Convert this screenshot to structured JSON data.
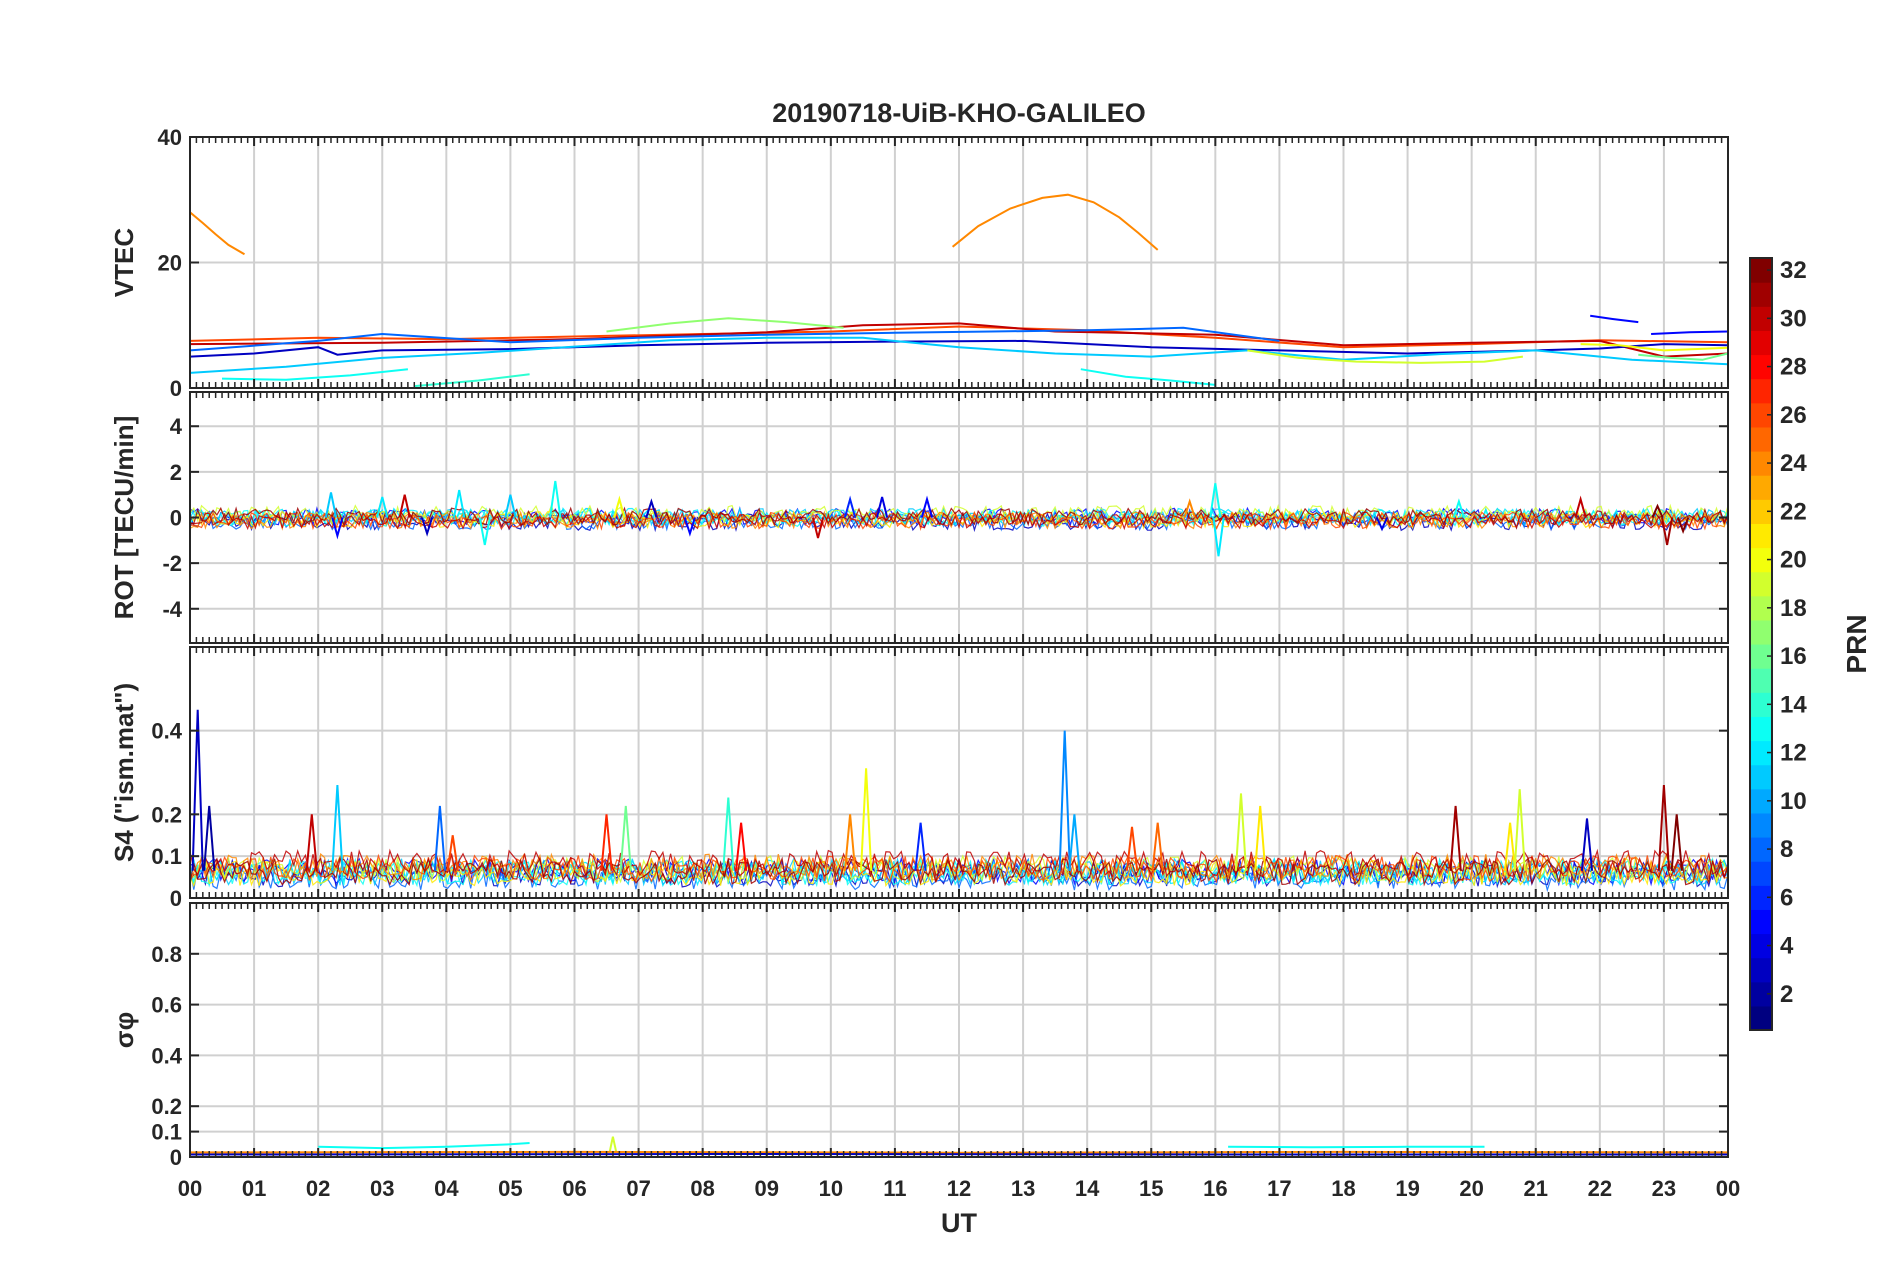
{
  "chart_data": {
    "type": "line",
    "title": "20190718-UiB-KHO-GALILEO",
    "xlabel": "UT",
    "x_ticks": [
      "00",
      "01",
      "02",
      "03",
      "04",
      "05",
      "06",
      "07",
      "08",
      "09",
      "10",
      "11",
      "12",
      "13",
      "14",
      "15",
      "16",
      "17",
      "18",
      "19",
      "20",
      "21",
      "22",
      "23",
      "00"
    ],
    "xlim_hours": [
      0,
      24
    ],
    "grid": true,
    "colorbar": {
      "label": "PRN",
      "range": [
        1,
        32
      ],
      "ticks": [
        "2",
        "4",
        "6",
        "8",
        "10",
        "12",
        "14",
        "16",
        "18",
        "20",
        "22",
        "24",
        "26",
        "28",
        "30",
        "32"
      ],
      "placement": "right",
      "colormap": "jet"
    },
    "panels": [
      {
        "id": "vtec",
        "ylabel": "VTEC",
        "ylim": [
          0,
          40
        ],
        "y_ticks": [
          "0",
          "20",
          "40"
        ],
        "y_tick_values": [
          0,
          20,
          40
        ],
        "series": [
          {
            "prn": 24,
            "x": [
              0.0,
              0.2,
              0.4,
              0.6,
              0.85
            ],
            "y": [
              28,
              26.3,
              24.5,
              22.8,
              21.3
            ]
          },
          {
            "prn": 24,
            "x": [
              11.9,
              12.3,
              12.8,
              13.3,
              13.7,
              14.1,
              14.5,
              14.8,
              15.1
            ],
            "y": [
              22.5,
              25.8,
              28.6,
              30.3,
              30.8,
              29.6,
              27.2,
              24.7,
              22.0
            ]
          },
          {
            "prn": 26,
            "x": [
              0,
              2,
              4,
              6,
              8,
              10,
              12,
              14,
              16,
              18,
              20,
              22,
              24
            ],
            "y": [
              7.5,
              8.0,
              7.8,
              8.2,
              8.6,
              9.0,
              9.8,
              9.2,
              8.0,
              6.5,
              7.0,
              7.6,
              7.3
            ]
          },
          {
            "prn": 30,
            "x": [
              0,
              3,
              6,
              9,
              10.5,
              12,
              13.5,
              16,
              18,
              20,
              22,
              23,
              24
            ],
            "y": [
              7.0,
              7.2,
              7.8,
              8.9,
              10.0,
              10.3,
              9.0,
              8.5,
              6.8,
              7.2,
              7.5,
              5.0,
              5.5
            ]
          },
          {
            "prn": 17,
            "x": [
              6.5,
              7.5,
              8.4,
              9.3,
              10.2
            ],
            "y": [
              9.0,
              10.3,
              11.1,
              10.5,
              9.6
            ]
          },
          {
            "prn": 8,
            "x": [
              0,
              2,
              3,
              5,
              7,
              9,
              11,
              12.5,
              14,
              15.5,
              17
            ],
            "y": [
              6.0,
              7.5,
              8.6,
              7.3,
              8.0,
              8.5,
              8.8,
              9.0,
              9.2,
              9.6,
              7.5
            ]
          },
          {
            "prn": 3,
            "x": [
              0,
              1,
              2,
              2.3,
              3,
              5,
              7,
              9,
              11,
              13,
              15,
              17,
              19,
              21,
              22,
              23,
              24
            ],
            "y": [
              5.0,
              5.5,
              6.5,
              5.3,
              6.0,
              6.2,
              6.8,
              7.2,
              7.4,
              7.5,
              6.5,
              6.0,
              5.5,
              6.0,
              6.3,
              7.0,
              6.8
            ]
          },
          {
            "prn": 5,
            "x": [
              21.85,
              22.2,
              22.6
            ],
            "y": [
              11.5,
              11.0,
              10.5
            ]
          },
          {
            "prn": 5,
            "x": [
              22.8,
              23.4,
              24
            ],
            "y": [
              8.6,
              8.9,
              9.0
            ]
          },
          {
            "prn": 11,
            "x": [
              0,
              1.5,
              3,
              4.5,
              6,
              7.5,
              9,
              10.5,
              12,
              13.5,
              15,
              16.5,
              18,
              19.5,
              21,
              22.5,
              24
            ],
            "y": [
              2.4,
              3.4,
              4.8,
              5.6,
              6.6,
              7.6,
              8.0,
              8.0,
              6.5,
              5.5,
              5.0,
              6.0,
              4.5,
              5.4,
              6.0,
              4.5,
              3.8
            ]
          },
          {
            "prn": 13,
            "x": [
              0.5,
              1.5,
              2.5,
              3.4
            ],
            "y": [
              1.5,
              1.3,
              2.0,
              3.0
            ]
          },
          {
            "prn": 13,
            "x": [
              13.9,
              14.6,
              15.3,
              16.0
            ],
            "y": [
              3.0,
              1.8,
              1.2,
              0.5
            ]
          },
          {
            "prn": 14,
            "x": [
              3.5,
              4.5,
              5.3
            ],
            "y": [
              0.3,
              1.2,
              2.2
            ]
          },
          {
            "prn": 19,
            "x": [
              16.5,
              17.3,
              18.2,
              19.2,
              20.2,
              20.8
            ],
            "y": [
              6.0,
              4.8,
              4.2,
              4.0,
              4.2,
              5.0
            ]
          },
          {
            "prn": 16,
            "x": [
              22.6,
              23.1,
              23.6,
              24
            ],
            "y": [
              5.3,
              4.8,
              4.5,
              5.5
            ]
          },
          {
            "prn": 20,
            "x": [
              21.7,
              22.3,
              23.0,
              24
            ],
            "y": [
              7.0,
              6.8,
              6.0,
              6.4
            ]
          }
        ]
      },
      {
        "id": "rot",
        "ylabel": "ROT [TECU/min]",
        "ylim": [
          -5.5,
          5.5
        ],
        "y_ticks": [
          "-4",
          "-2",
          "0",
          "2",
          "4"
        ],
        "y_tick_values": [
          -4,
          -2,
          0,
          2,
          4
        ],
        "noise_band": [
          -0.4,
          0.4
        ],
        "spikes": [
          {
            "x": 2.2,
            "y": 1.1,
            "prn": 11
          },
          {
            "x": 2.3,
            "y": -0.8,
            "prn": 5
          },
          {
            "x": 3.0,
            "y": 0.9,
            "prn": 12
          },
          {
            "x": 3.35,
            "y": 1.0,
            "prn": 30
          },
          {
            "x": 3.7,
            "y": -0.7,
            "prn": 3
          },
          {
            "x": 4.2,
            "y": 1.2,
            "prn": 12
          },
          {
            "x": 4.6,
            "y": -1.2,
            "prn": 13
          },
          {
            "x": 5.0,
            "y": 1.0,
            "prn": 11
          },
          {
            "x": 5.7,
            "y": 1.6,
            "prn": 13
          },
          {
            "x": 6.7,
            "y": 0.8,
            "prn": 20
          },
          {
            "x": 7.2,
            "y": 0.7,
            "prn": 3
          },
          {
            "x": 7.8,
            "y": -0.7,
            "prn": 5
          },
          {
            "x": 9.8,
            "y": -0.9,
            "prn": 30
          },
          {
            "x": 10.3,
            "y": 0.8,
            "prn": 6
          },
          {
            "x": 10.8,
            "y": 0.9,
            "prn": 4
          },
          {
            "x": 11.5,
            "y": 0.8,
            "prn": 5
          },
          {
            "x": 15.6,
            "y": 0.7,
            "prn": 24
          },
          {
            "x": 16.0,
            "y": 1.5,
            "prn": 13
          },
          {
            "x": 16.05,
            "y": -1.7,
            "prn": 12
          },
          {
            "x": 18.6,
            "y": -0.5,
            "prn": 4
          },
          {
            "x": 19.8,
            "y": 0.7,
            "prn": 13
          },
          {
            "x": 21.7,
            "y": 0.8,
            "prn": 30
          },
          {
            "x": 22.9,
            "y": 0.5,
            "prn": 32
          },
          {
            "x": 23.05,
            "y": -1.2,
            "prn": 31
          },
          {
            "x": 23.3,
            "y": -0.6,
            "prn": 32
          }
        ]
      },
      {
        "id": "s4",
        "ylabel": "S4 (\"ism.mat\")",
        "ylim": [
          0,
          0.6
        ],
        "y_ticks": [
          "0",
          "0.1",
          "0.2",
          "0.4"
        ],
        "y_tick_values": [
          0,
          0.1,
          0.2,
          0.4
        ],
        "noise_band": [
          0.03,
          0.1
        ],
        "spikes": [
          {
            "x": 0.12,
            "y": 0.45,
            "prn": 3
          },
          {
            "x": 0.3,
            "y": 0.22,
            "prn": 2
          },
          {
            "x": 1.9,
            "y": 0.2,
            "prn": 30
          },
          {
            "x": 2.3,
            "y": 0.27,
            "prn": 11
          },
          {
            "x": 3.9,
            "y": 0.22,
            "prn": 8
          },
          {
            "x": 4.1,
            "y": 0.15,
            "prn": 26
          },
          {
            "x": 6.5,
            "y": 0.2,
            "prn": 27
          },
          {
            "x": 6.8,
            "y": 0.22,
            "prn": 16
          },
          {
            "x": 8.4,
            "y": 0.24,
            "prn": 14
          },
          {
            "x": 8.6,
            "y": 0.18,
            "prn": 28
          },
          {
            "x": 10.3,
            "y": 0.2,
            "prn": 24
          },
          {
            "x": 10.55,
            "y": 0.31,
            "prn": 20
          },
          {
            "x": 11.4,
            "y": 0.18,
            "prn": 6
          },
          {
            "x": 13.65,
            "y": 0.4,
            "prn": 9
          },
          {
            "x": 13.8,
            "y": 0.2,
            "prn": 10
          },
          {
            "x": 14.7,
            "y": 0.17,
            "prn": 26
          },
          {
            "x": 15.1,
            "y": 0.18,
            "prn": 25
          },
          {
            "x": 16.4,
            "y": 0.25,
            "prn": 19
          },
          {
            "x": 16.7,
            "y": 0.22,
            "prn": 21
          },
          {
            "x": 19.75,
            "y": 0.22,
            "prn": 31
          },
          {
            "x": 20.6,
            "y": 0.18,
            "prn": 21
          },
          {
            "x": 20.75,
            "y": 0.26,
            "prn": 19
          },
          {
            "x": 21.8,
            "y": 0.19,
            "prn": 3
          },
          {
            "x": 23.0,
            "y": 0.27,
            "prn": 31
          },
          {
            "x": 23.2,
            "y": 0.2,
            "prn": 32
          }
        ]
      },
      {
        "id": "sigma_phi",
        "ylabel": "σφ",
        "ylim": [
          0,
          1.0
        ],
        "y_ticks": [
          "0",
          "0.1",
          "0.2",
          "0.4",
          "0.6",
          "0.8"
        ],
        "y_tick_values": [
          0,
          0.1,
          0.2,
          0.4,
          0.6,
          0.8
        ],
        "series": [
          {
            "prn": 13,
            "x": [
              2.0,
              3.0,
              4.0,
              5.0,
              5.3
            ],
            "y": [
              0.04,
              0.035,
              0.04,
              0.05,
              0.055
            ]
          },
          {
            "prn": 13,
            "x": [
              16.2,
              17.5,
              19.0,
              20.2
            ],
            "y": [
              0.04,
              0.038,
              0.04,
              0.04
            ]
          },
          {
            "prn": 19,
            "x": [
              6.55,
              6.6,
              6.65
            ],
            "y": [
              0.02,
              0.08,
              0.02
            ]
          },
          {
            "prn": 24,
            "x": [
              0,
              6,
              12,
              18,
              24
            ],
            "y": [
              0.018,
              0.02,
              0.017,
              0.02,
              0.018
            ]
          },
          {
            "prn": 3,
            "x": [
              0,
              8,
              16,
              24
            ],
            "y": [
              0.01,
              0.012,
              0.01,
              0.01
            ]
          }
        ]
      }
    ]
  }
}
